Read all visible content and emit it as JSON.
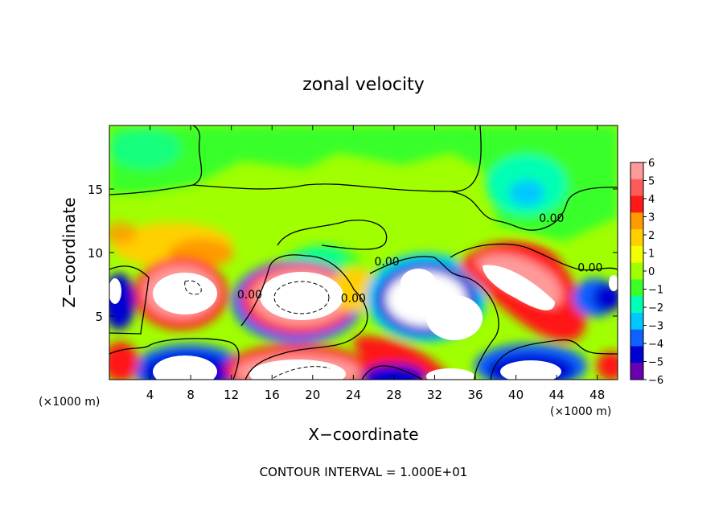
{
  "chart_data": {
    "type": "heatmap",
    "title": "zonal velocity",
    "xlabel": "X−coordinate",
    "ylabel": "Z−coordinate",
    "x_unit_left": "(×1000 m)",
    "x_unit_right": "(×1000 m)",
    "footer": "CONTOUR INTERVAL = 1.000E+01",
    "xlim": [
      0,
      50
    ],
    "ylim": [
      0,
      20
    ],
    "x_ticks": [
      4,
      8,
      12,
      16,
      20,
      24,
      28,
      32,
      36,
      40,
      44,
      48
    ],
    "x_tick_labels": [
      "4",
      "8",
      "12",
      "16",
      "20",
      "24",
      "28",
      "32",
      "36",
      "40",
      "44",
      "48"
    ],
    "y_ticks": [
      5,
      10,
      15
    ],
    "y_tick_labels": [
      "5",
      "10",
      "15"
    ],
    "colorbar": {
      "levels": [
        6,
        5,
        4,
        3,
        2,
        1,
        0,
        -1,
        -2,
        -3,
        -4,
        -5,
        -6
      ],
      "labels": [
        "6",
        "5",
        "4",
        "3",
        "2",
        "1",
        "0",
        "−1",
        "−2",
        "−3",
        "−4",
        "−5",
        "−6"
      ],
      "colors": [
        "#ff9a9a",
        "#ff5a5a",
        "#ff1818",
        "#ff9a00",
        "#ffd000",
        "#f2ff00",
        "#a0ff00",
        "#39ff2a",
        "#00ffb4",
        "#00c8ff",
        "#1060ff",
        "#0000d2",
        "#6a00b0"
      ],
      "out_of_range_color": "#ffffff"
    },
    "contour_labels": [
      {
        "text": "0.00",
        "x": 43.5,
        "z": 12.4
      },
      {
        "text": "0.00",
        "x": 27.3,
        "z": 9.0
      },
      {
        "text": "0.00",
        "x": 47.3,
        "z": 8.5
      },
      {
        "text": "0.00",
        "x": 13.8,
        "z": 6.4
      },
      {
        "text": "0.00",
        "x": 24.0,
        "z": 6.1
      }
    ],
    "features": [
      {
        "sign": "positive",
        "x": 5.5,
        "z": 6.5,
        "peak_gt": 6
      },
      {
        "sign": "positive",
        "x": 19.5,
        "z": 6.5,
        "peak_gt": 6
      },
      {
        "sign": "positive",
        "x": 38.0,
        "z": 8.0,
        "peak_gt": 6
      },
      {
        "sign": "negative",
        "x": 33.0,
        "z": 5.0,
        "peak_lt": -6
      },
      {
        "sign": "negative",
        "x": 29.5,
        "z": 7.8,
        "peak_lt": -6
      },
      {
        "sign": "negative",
        "x": 6.0,
        "z": 1.0,
        "peak_lt": -6
      },
      {
        "sign": "negative",
        "x": 41.0,
        "z": 14.5,
        "value": -3
      }
    ]
  }
}
